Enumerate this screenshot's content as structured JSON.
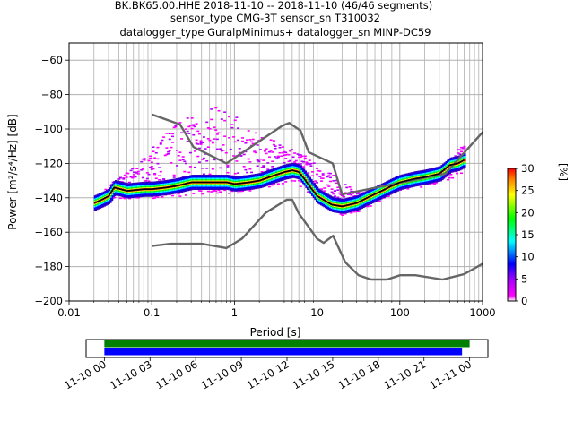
{
  "title": {
    "line1": "BK.BK65.00.HHE   2018-11-10 -- 2018-11-10  (46/46 segments)",
    "line2": "sensor_type CMG-3T sensor_sn T310032",
    "line3": "datalogger_type GuralpMinimus+ datalogger_sn MINP-DC59"
  },
  "chart_data": [
    {
      "type": "heatmap",
      "title": "",
      "xlabel": "Period [s]",
      "ylabel": "Power [m²/s⁴/Hz] [dB]",
      "x_scale": "log",
      "xlim": [
        0.01,
        1000
      ],
      "ylim": [
        -200,
        -50
      ],
      "x_ticks": [
        0.01,
        0.1,
        1,
        10,
        100,
        1000
      ],
      "x_tick_labels": [
        "0.01",
        "0.1",
        "1",
        "10",
        "100",
        "1000"
      ],
      "y_ticks": [
        -200,
        -180,
        -160,
        -140,
        -120,
        -100,
        -80,
        -60
      ],
      "y_tick_labels": [
        "−200",
        "−180",
        "−160",
        "−140",
        "−120",
        "−100",
        "−80",
        "−60"
      ],
      "grid": true,
      "colorbar": {
        "label": "[%]",
        "min": 0,
        "max": 30,
        "ticks": [
          0,
          5,
          10,
          15,
          20,
          25,
          30
        ],
        "tick_labels": [
          "0",
          "5",
          "10",
          "15",
          "20",
          "25",
          "30"
        ]
      },
      "series": [
        {
          "role": "new-high-noise-model",
          "color": "#666666",
          "x": [
            0.1,
            0.22,
            0.32,
            0.8,
            3.8,
            4.6,
            6.3,
            7.9,
            15.4,
            20,
            354.8,
            10000
          ],
          "y": [
            -91.5,
            -97.4,
            -110.5,
            -120,
            -98,
            -96.5,
            -101,
            -113.5,
            -120,
            -138,
            -126,
            -48.5
          ]
        },
        {
          "role": "new-low-noise-model",
          "color": "#666666",
          "x": [
            0.1,
            0.17,
            0.4,
            0.8,
            1.24,
            2.4,
            4.3,
            5,
            6,
            10,
            12,
            15.6,
            21.9,
            31.6,
            45,
            70,
            101,
            154,
            328,
            600,
            10000
          ],
          "y": [
            -168,
            -166.7,
            -166.7,
            -169.2,
            -163.7,
            -148.6,
            -141.1,
            -141.1,
            -149,
            -163.8,
            -166.2,
            -162.1,
            -177.5,
            -185,
            -187.5,
            -187.5,
            -185,
            -185,
            -187.5,
            -184.4,
            -151.5
          ]
        },
        {
          "role": "mode",
          "color": "#000000",
          "x": [
            0.02,
            0.025,
            0.03,
            0.035,
            0.05,
            0.08,
            0.1,
            0.15,
            0.2,
            0.3,
            0.5,
            0.8,
            1,
            1.5,
            2,
            3,
            4,
            5,
            6,
            7,
            8,
            10,
            15,
            20,
            30,
            40,
            60,
            80,
            100,
            150,
            200,
            300,
            400,
            500,
            600
          ],
          "y": [
            -143,
            -141,
            -139,
            -134,
            -136,
            -135,
            -135,
            -134,
            -133,
            -131,
            -131,
            -131,
            -132,
            -131,
            -130,
            -127,
            -125,
            -124,
            -125,
            -129,
            -133,
            -139,
            -144,
            -145,
            -143,
            -140,
            -136,
            -133,
            -131,
            -129,
            -128,
            -126,
            -121,
            -120,
            -118
          ]
        },
        {
          "role": "distribution-upper-scatter",
          "color": "#b400ff",
          "x": [
            0.02,
            0.03,
            0.05,
            0.08,
            0.1,
            0.15,
            0.2,
            0.3,
            0.5,
            0.6,
            0.8,
            1,
            1.5,
            2,
            3,
            5,
            8,
            10,
            15,
            20,
            30,
            50,
            100,
            150,
            200,
            300,
            400,
            500,
            600
          ],
          "y": [
            -140,
            -132,
            -124,
            -116,
            -110,
            -100,
            -95,
            -92,
            -88,
            -86,
            -88,
            -92,
            -97,
            -101,
            -106,
            -111,
            -116,
            -122,
            -126,
            -131,
            -136,
            -136,
            -131,
            -128,
            -126,
            -124,
            -119,
            -111,
            -109
          ]
        },
        {
          "role": "distribution-lower-scatter",
          "color": "#b400ff",
          "x": [
            0.02,
            0.03,
            0.05,
            0.1,
            0.2,
            0.5,
            1,
            2,
            5,
            10,
            15,
            20,
            30,
            50,
            100,
            200,
            300,
            500,
            600
          ],
          "y": [
            -145,
            -140,
            -140,
            -140,
            -139,
            -138,
            -137,
            -135,
            -130,
            -142,
            -148,
            -150,
            -148,
            -143,
            -136,
            -133,
            -131,
            -127,
            -125
          ]
        }
      ]
    },
    {
      "type": "timeline",
      "x_tick_labels": [
        "11-10 00",
        "11-10 03",
        "11-10 06",
        "11-10 09",
        "11-10 12",
        "11-10 15",
        "11-10 18",
        "11-10 21",
        "11-11 00"
      ],
      "xlim_hours": [
        -1.2,
        25.2
      ],
      "bars": [
        {
          "role": "data-coverage",
          "color": "#008000",
          "start_hour": 0,
          "end_hour": 24
        },
        {
          "role": "psd-coverage",
          "color": "#0000ff",
          "start_hour": 0,
          "end_hour": 23.5
        }
      ]
    }
  ]
}
